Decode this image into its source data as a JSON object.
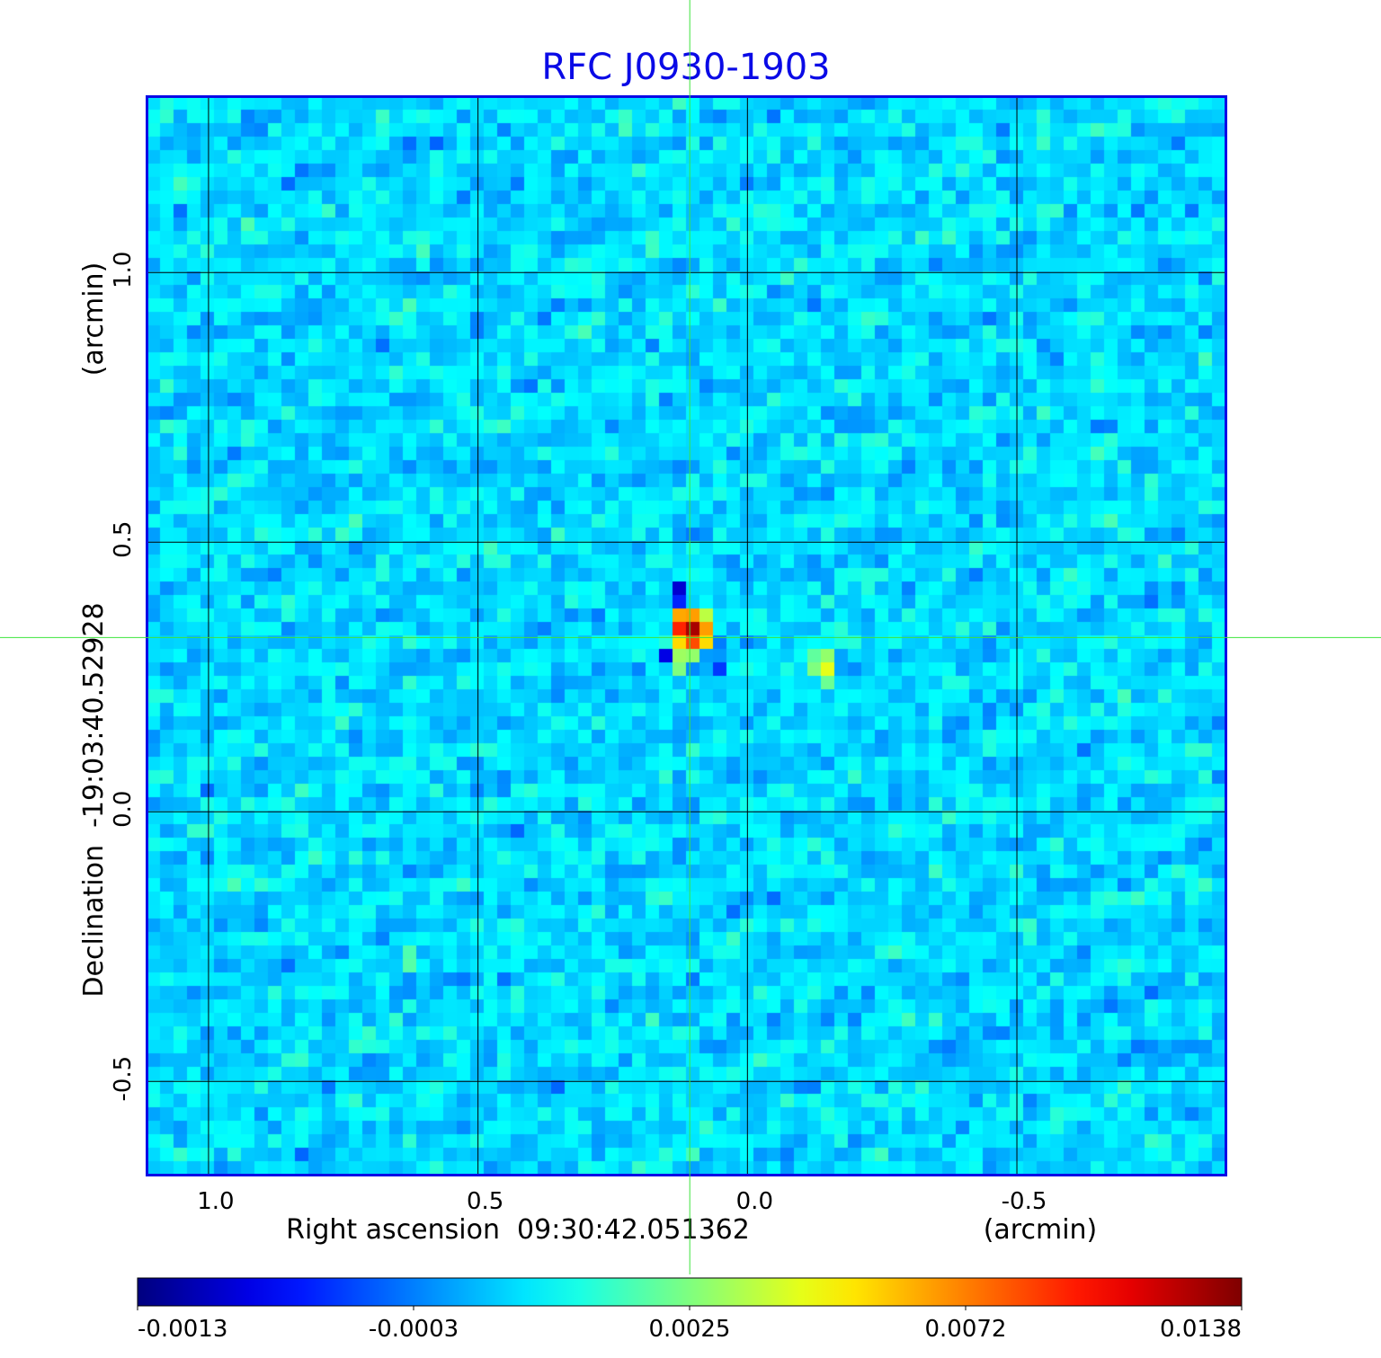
{
  "chart_data": {
    "type": "heatmap",
    "title": "RFC J0930-1903",
    "xlabel": "Right ascension  09:30:42.051362",
    "xunit": "(arcmin)",
    "ylabel": "Declination  -19:03:40.52928",
    "yunit": "(arcmin)",
    "xlim": [
      1.115,
      -0.887
    ],
    "ylim": [
      -0.673,
      1.327
    ],
    "pixel_size_arcmin": 0.025,
    "xticks": [
      {
        "value": 1.0,
        "label": "1.0"
      },
      {
        "value": 0.5,
        "label": "0.5"
      },
      {
        "value": 0.0,
        "label": "0.0"
      },
      {
        "value": -0.5,
        "label": "-0.5"
      }
    ],
    "yticks": [
      {
        "value": 1.0,
        "label": "1.0"
      },
      {
        "value": 0.5,
        "label": "0.5"
      },
      {
        "value": 0.0,
        "label": "0.0"
      },
      {
        "value": -0.5,
        "label": "-0.5"
      }
    ],
    "grid": true,
    "crosshair": {
      "ra": 0.107,
      "dec": 0.323
    },
    "colormap": "jet",
    "colorbar": {
      "placement": "bottom",
      "ticks": [
        "-0.0013",
        "-0.0003",
        "0.0025",
        "0.0072",
        "0.0138"
      ],
      "tick_fractions": [
        0,
        0.25,
        0.5,
        0.75,
        1
      ]
    },
    "background_level_fraction": 0.34,
    "features": [
      {
        "ra": 0.103,
        "dec": 0.34,
        "level": 0.96
      },
      {
        "ra": 0.128,
        "dec": 0.34,
        "level": 0.84
      },
      {
        "ra": 0.128,
        "dec": 0.365,
        "level": 0.71
      },
      {
        "ra": 0.103,
        "dec": 0.365,
        "level": 0.72
      },
      {
        "ra": 0.078,
        "dec": 0.365,
        "level": 0.56
      },
      {
        "ra": 0.078,
        "dec": 0.34,
        "level": 0.72
      },
      {
        "ra": 0.128,
        "dec": 0.315,
        "level": 0.66
      },
      {
        "ra": 0.103,
        "dec": 0.315,
        "level": 0.8
      },
      {
        "ra": 0.078,
        "dec": 0.315,
        "level": 0.66
      },
      {
        "ra": 0.128,
        "dec": 0.29,
        "level": 0.53
      },
      {
        "ra": 0.103,
        "dec": 0.29,
        "level": 0.52
      },
      {
        "ra": 0.128,
        "dec": 0.265,
        "level": 0.5
      },
      {
        "ra": 0.128,
        "dec": 0.415,
        "level": 0.08
      },
      {
        "ra": 0.128,
        "dec": 0.39,
        "level": 0.16
      },
      {
        "ra": 0.153,
        "dec": 0.29,
        "level": 0.1
      },
      {
        "ra": 0.053,
        "dec": 0.265,
        "level": 0.18
      },
      {
        "ra": -0.148,
        "dec": 0.265,
        "level": 0.6
      },
      {
        "ra": -0.148,
        "dec": 0.29,
        "level": 0.52
      },
      {
        "ra": -0.123,
        "dec": 0.265,
        "level": 0.5
      },
      {
        "ra": -0.123,
        "dec": 0.29,
        "level": 0.47
      },
      {
        "ra": -0.148,
        "dec": 0.24,
        "level": 0.48
      }
    ]
  }
}
